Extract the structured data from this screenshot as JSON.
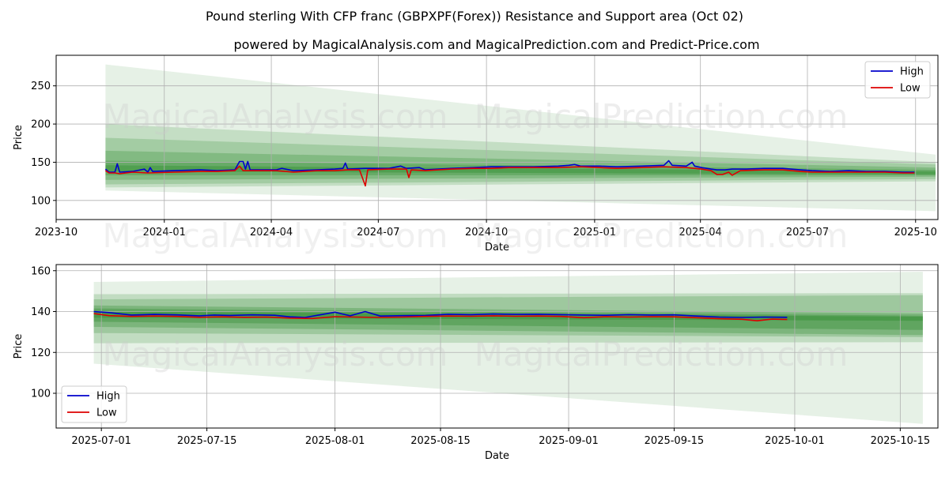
{
  "title": "Pound sterling With CFP franc (GBPXPF(Forex)) Resistance and Support area (Oct 02)",
  "subtitle": "powered by MagicalAnalysis.com and MagicalPrediction.com and Predict-Price.com",
  "watermarks": [
    "MagicalAnalysis.com",
    "MagicalPrediction.com"
  ],
  "colors": {
    "high": "#0000cc",
    "low": "#dd0000",
    "band": "#2e8b2e",
    "grid": "#b0b0b0",
    "axis": "#000000"
  },
  "chart_data": [
    {
      "type": "line",
      "xlabel": "Date",
      "ylabel": "Price",
      "xlim": [
        "2023-10-01",
        "2025-10-20"
      ],
      "ylim": [
        75,
        290
      ],
      "xticks": [
        {
          "date": "2023-10-01",
          "label": "2023-10"
        },
        {
          "date": "2024-01-01",
          "label": "2024-01"
        },
        {
          "date": "2024-04-01",
          "label": "2024-04"
        },
        {
          "date": "2024-07-01",
          "label": "2024-07"
        },
        {
          "date": "2024-10-01",
          "label": "2024-10"
        },
        {
          "date": "2025-01-01",
          "label": "2025-01"
        },
        {
          "date": "2025-04-01",
          "label": "2025-04"
        },
        {
          "date": "2025-07-01",
          "label": "2025-07"
        },
        {
          "date": "2025-10-01",
          "label": "2025-10"
        }
      ],
      "yticks": [
        100,
        150,
        200,
        250
      ],
      "legend": {
        "position": "top-right",
        "entries": [
          "High",
          "Low"
        ]
      },
      "grid": true,
      "series": [
        {
          "name": "High",
          "points": [
            [
              "2023-11-12",
              141
            ],
            [
              "2023-11-15",
              137
            ],
            [
              "2023-11-20",
              137
            ],
            [
              "2023-11-22",
              148
            ],
            [
              "2023-11-24",
              137
            ],
            [
              "2023-12-05",
              138
            ],
            [
              "2023-12-15",
              141
            ],
            [
              "2023-12-18",
              137
            ],
            [
              "2023-12-20",
              143
            ],
            [
              "2023-12-22",
              138
            ],
            [
              "2024-01-10",
              139
            ],
            [
              "2024-02-01",
              140
            ],
            [
              "2024-02-15",
              139
            ],
            [
              "2024-03-01",
              140
            ],
            [
              "2024-03-05",
              151
            ],
            [
              "2024-03-08",
              151
            ],
            [
              "2024-03-10",
              141
            ],
            [
              "2024-03-12",
              151
            ],
            [
              "2024-03-14",
              140
            ],
            [
              "2024-03-25",
              140
            ],
            [
              "2024-04-05",
              140
            ],
            [
              "2024-04-10",
              142
            ],
            [
              "2024-04-20",
              139
            ],
            [
              "2024-05-10",
              140
            ],
            [
              "2024-05-25",
              141
            ],
            [
              "2024-06-01",
              142
            ],
            [
              "2024-06-03",
              149
            ],
            [
              "2024-06-05",
              141
            ],
            [
              "2024-06-20",
              142
            ],
            [
              "2024-07-10",
              142
            ],
            [
              "2024-07-20",
              145
            ],
            [
              "2024-07-25",
              142
            ],
            [
              "2024-08-05",
              143
            ],
            [
              "2024-08-10",
              140
            ],
            [
              "2024-09-01",
              142
            ],
            [
              "2024-09-20",
              143
            ],
            [
              "2024-10-05",
              144
            ],
            [
              "2024-10-20",
              144
            ],
            [
              "2024-11-10",
              144
            ],
            [
              "2024-12-01",
              145
            ],
            [
              "2024-12-10",
              146
            ],
            [
              "2024-12-15",
              147
            ],
            [
              "2024-12-20",
              145
            ],
            [
              "2025-01-05",
              145
            ],
            [
              "2025-01-20",
              144
            ],
            [
              "2025-02-10",
              145
            ],
            [
              "2025-03-01",
              146
            ],
            [
              "2025-03-05",
              152
            ],
            [
              "2025-03-08",
              146
            ],
            [
              "2025-03-20",
              145
            ],
            [
              "2025-03-25",
              150
            ],
            [
              "2025-03-27",
              145
            ],
            [
              "2025-04-02",
              143
            ],
            [
              "2025-04-10",
              141
            ],
            [
              "2025-04-15",
              140
            ],
            [
              "2025-04-22",
              140
            ],
            [
              "2025-04-28",
              141
            ],
            [
              "2025-05-10",
              141
            ],
            [
              "2025-05-25",
              142
            ],
            [
              "2025-06-10",
              142
            ],
            [
              "2025-06-25",
              140
            ],
            [
              "2025-07-05",
              139
            ],
            [
              "2025-07-20",
              138
            ],
            [
              "2025-08-05",
              139
            ],
            [
              "2025-08-20",
              138
            ],
            [
              "2025-09-05",
              138
            ],
            [
              "2025-09-20",
              137
            ],
            [
              "2025-09-30",
              137
            ]
          ]
        },
        {
          "name": "Low",
          "points": [
            [
              "2023-11-12",
              139
            ],
            [
              "2023-11-15",
              136
            ],
            [
              "2023-11-20",
              136
            ],
            [
              "2023-11-24",
              135
            ],
            [
              "2023-12-05",
              137
            ],
            [
              "2023-12-18",
              136
            ],
            [
              "2024-01-10",
              137
            ],
            [
              "2024-02-01",
              138
            ],
            [
              "2024-02-15",
              138
            ],
            [
              "2024-03-01",
              139
            ],
            [
              "2024-03-05",
              145
            ],
            [
              "2024-03-08",
              139
            ],
            [
              "2024-03-14",
              139
            ],
            [
              "2024-04-05",
              139
            ],
            [
              "2024-04-20",
              137
            ],
            [
              "2024-05-10",
              139
            ],
            [
              "2024-05-25",
              139
            ],
            [
              "2024-06-05",
              140
            ],
            [
              "2024-06-15",
              140
            ],
            [
              "2024-06-20",
              119
            ],
            [
              "2024-06-22",
              140
            ],
            [
              "2024-07-10",
              141
            ],
            [
              "2024-07-25",
              141
            ],
            [
              "2024-07-27",
              130
            ],
            [
              "2024-07-29",
              140
            ],
            [
              "2024-08-10",
              139
            ],
            [
              "2024-09-01",
              141
            ],
            [
              "2024-09-20",
              142
            ],
            [
              "2024-10-05",
              142
            ],
            [
              "2024-10-20",
              143
            ],
            [
              "2024-11-10",
              143
            ],
            [
              "2024-12-01",
              143
            ],
            [
              "2024-12-20",
              144
            ],
            [
              "2025-01-05",
              143
            ],
            [
              "2025-01-20",
              142
            ],
            [
              "2025-02-10",
              143
            ],
            [
              "2025-03-01",
              144
            ],
            [
              "2025-03-20",
              143
            ],
            [
              "2025-04-02",
              141
            ],
            [
              "2025-04-10",
              139
            ],
            [
              "2025-04-15",
              134
            ],
            [
              "2025-04-20",
              134
            ],
            [
              "2025-04-25",
              137
            ],
            [
              "2025-04-28",
              133
            ],
            [
              "2025-05-05",
              139
            ],
            [
              "2025-05-25",
              140
            ],
            [
              "2025-06-10",
              140
            ],
            [
              "2025-06-25",
              138
            ],
            [
              "2025-07-05",
              137
            ],
            [
              "2025-07-20",
              137
            ],
            [
              "2025-08-05",
              137
            ],
            [
              "2025-08-20",
              137
            ],
            [
              "2025-09-05",
              137
            ],
            [
              "2025-09-20",
              136
            ],
            [
              "2025-09-30",
              136
            ]
          ]
        }
      ],
      "bands": [
        {
          "opacity": 0.12,
          "start": [
            113,
            278
          ],
          "end": [
            86,
            160
          ]
        },
        {
          "opacity": 0.18,
          "start": [
            117,
            200
          ],
          "end": [
            125,
            150
          ]
        },
        {
          "opacity": 0.22,
          "start": [
            121,
            182
          ],
          "end": [
            128,
            147
          ]
        },
        {
          "opacity": 0.28,
          "start": [
            127,
            165
          ],
          "end": [
            131,
            143
          ]
        },
        {
          "opacity": 0.32,
          "start": [
            133,
            152
          ],
          "end": [
            133,
            140
          ]
        },
        {
          "opacity": 0.38,
          "start": [
            138,
            146
          ],
          "end": [
            134,
            138
          ]
        }
      ],
      "band_range": [
        "2023-11-12",
        "2025-10-18"
      ]
    },
    {
      "type": "line",
      "xlabel": "Date",
      "ylabel": "Price",
      "xlim": [
        "2025-06-25",
        "2025-10-20"
      ],
      "ylim": [
        83,
        163
      ],
      "xticks": [
        {
          "date": "2025-07-01",
          "label": "2025-07-01"
        },
        {
          "date": "2025-07-15",
          "label": "2025-07-15"
        },
        {
          "date": "2025-08-01",
          "label": "2025-08-01"
        },
        {
          "date": "2025-08-15",
          "label": "2025-08-15"
        },
        {
          "date": "2025-09-01",
          "label": "2025-09-01"
        },
        {
          "date": "2025-09-15",
          "label": "2025-09-15"
        },
        {
          "date": "2025-10-01",
          "label": "2025-10-01"
        },
        {
          "date": "2025-10-15",
          "label": "2025-10-15"
        }
      ],
      "yticks": [
        100,
        120,
        140,
        160
      ],
      "legend": {
        "position": "bottom-left",
        "entries": [
          "High",
          "Low"
        ]
      },
      "grid": true,
      "series": [
        {
          "name": "High",
          "points": [
            [
              "2025-06-30",
              140
            ],
            [
              "2025-07-02",
              139.5
            ],
            [
              "2025-07-05",
              138.3
            ],
            [
              "2025-07-08",
              138.6
            ],
            [
              "2025-07-11",
              138.4
            ],
            [
              "2025-07-14",
              137.9
            ],
            [
              "2025-07-16",
              138.3
            ],
            [
              "2025-07-18",
              138.1
            ],
            [
              "2025-07-21",
              138.4
            ],
            [
              "2025-07-24",
              138.2
            ],
            [
              "2025-07-26",
              137.4
            ],
            [
              "2025-07-28",
              137.1
            ],
            [
              "2025-07-30",
              138.4
            ],
            [
              "2025-08-01",
              139.7
            ],
            [
              "2025-08-03",
              137.9
            ],
            [
              "2025-08-05",
              140
            ],
            [
              "2025-08-07",
              137.8
            ],
            [
              "2025-08-10",
              138
            ],
            [
              "2025-08-13",
              138.1
            ],
            [
              "2025-08-16",
              138.7
            ],
            [
              "2025-08-19",
              138.5
            ],
            [
              "2025-08-22",
              138.8
            ],
            [
              "2025-08-25",
              138.6
            ],
            [
              "2025-08-28",
              138.7
            ],
            [
              "2025-08-31",
              138.5
            ],
            [
              "2025-09-03",
              138.3
            ],
            [
              "2025-09-06",
              138.2
            ],
            [
              "2025-09-09",
              138.5
            ],
            [
              "2025-09-12",
              138.3
            ],
            [
              "2025-09-15",
              138.4
            ],
            [
              "2025-09-18",
              137.8
            ],
            [
              "2025-09-21",
              137.3
            ],
            [
              "2025-09-24",
              137.1
            ],
            [
              "2025-09-27",
              137.3
            ],
            [
              "2025-09-30",
              137.2
            ]
          ]
        },
        {
          "name": "Low",
          "points": [
            [
              "2025-06-30",
              139
            ],
            [
              "2025-07-02",
              138
            ],
            [
              "2025-07-05",
              137.6
            ],
            [
              "2025-07-08",
              137.8
            ],
            [
              "2025-07-11",
              137.6
            ],
            [
              "2025-07-14",
              137.2
            ],
            [
              "2025-07-17",
              137.4
            ],
            [
              "2025-07-20",
              137.2
            ],
            [
              "2025-07-23",
              137.3
            ],
            [
              "2025-07-26",
              136.8
            ],
            [
              "2025-07-29",
              136.6
            ],
            [
              "2025-08-01",
              137.5
            ],
            [
              "2025-08-04",
              137.3
            ],
            [
              "2025-08-07",
              137.1
            ],
            [
              "2025-08-10",
              137.3
            ],
            [
              "2025-08-13",
              137.6
            ],
            [
              "2025-08-16",
              137.8
            ],
            [
              "2025-08-19",
              137.7
            ],
            [
              "2025-08-22",
              137.9
            ],
            [
              "2025-08-25",
              137.7
            ],
            [
              "2025-08-28",
              137.8
            ],
            [
              "2025-08-31",
              137.6
            ],
            [
              "2025-09-03",
              137
            ],
            [
              "2025-09-06",
              137.5
            ],
            [
              "2025-09-09",
              137.3
            ],
            [
              "2025-09-12",
              137.5
            ],
            [
              "2025-09-15",
              137.4
            ],
            [
              "2025-09-18",
              137
            ],
            [
              "2025-09-21",
              136.5
            ],
            [
              "2025-09-24",
              136.2
            ],
            [
              "2025-09-26",
              135.5
            ],
            [
              "2025-09-28",
              136.3
            ],
            [
              "2025-09-30",
              136.1
            ]
          ]
        }
      ],
      "bands": [
        {
          "opacity": 0.12,
          "start": [
            114.5,
            154.5
          ],
          "end": [
            85,
            159.5
          ]
        },
        {
          "opacity": 0.2,
          "start": [
            124.5,
            148.5
          ],
          "end": [
            125,
            149
          ]
        },
        {
          "opacity": 0.24,
          "start": [
            129.5,
            146
          ],
          "end": [
            127.5,
            148
          ]
        },
        {
          "opacity": 0.3,
          "start": [
            132.5,
            143
          ],
          "end": [
            128.5,
            139
          ]
        },
        {
          "opacity": 0.36,
          "start": [
            135,
            141.5
          ],
          "end": [
            131,
            138
          ]
        },
        {
          "opacity": 0.42,
          "start": [
            137,
            140
          ],
          "end": [
            135.5,
            137.5
          ]
        }
      ],
      "band_range": [
        "2025-06-30",
        "2025-10-18"
      ]
    }
  ]
}
